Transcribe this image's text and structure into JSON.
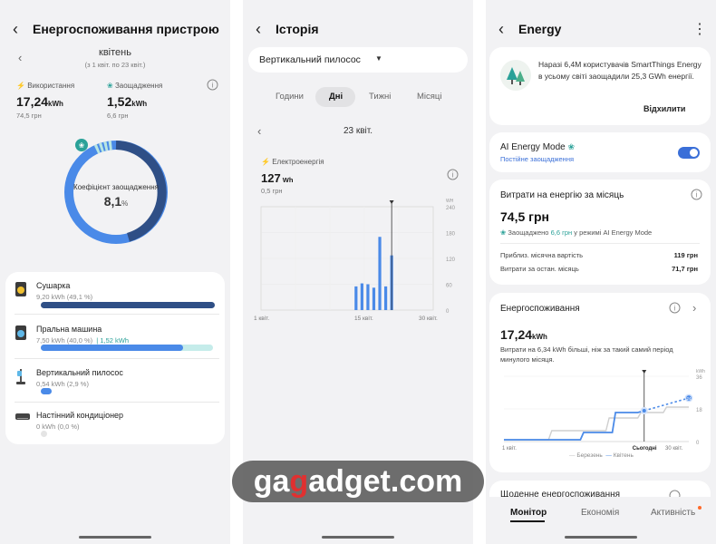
{
  "panel1": {
    "title": "Енергоспоживання пристрою",
    "month": "квітень",
    "range": "(з 1 квіт. по 23 квіт.)",
    "usage_label": "Використання",
    "usage_value": "17,24",
    "usage_unit": "kWh",
    "usage_cost": "74,5 грн",
    "savings_label": "Заощадження",
    "savings_value": "1,52",
    "savings_unit": "kWh",
    "savings_cost": "6,6 грн",
    "ring_label": "Коефіцієнт заощадження",
    "ring_value": "8,1",
    "ring_unit": "%",
    "devices": [
      {
        "name": "Сушарка",
        "value": "9,20 kWh (49,1 %)",
        "share": 1.0,
        "extra": ""
      },
      {
        "name": "Пральна машина",
        "value": "7,50 kWh (40,0 %)",
        "share": 0.82,
        "extra": "1,52 kWh"
      },
      {
        "name": "Вертикальний пилосос",
        "value": "0,54 kWh (2,9 %)",
        "share": 0.06,
        "extra": ""
      },
      {
        "name": "Настінний кондиціонер",
        "value": "0 kWh (0,0 %)",
        "share": 0.0,
        "extra": ""
      }
    ]
  },
  "panel2": {
    "title": "Історія",
    "device_select": "Вертикальний пилосос",
    "tabs": [
      "Години",
      "Дні",
      "Тижні",
      "Місяці"
    ],
    "active_tab": "Дні",
    "date": "23 квіт.",
    "metric_label": "Електроенергія",
    "metric_value": "127",
    "metric_unit": "Wh",
    "metric_cost": "0,5 грн"
  },
  "chart_data": [
    {
      "type": "bar",
      "xlabel": "",
      "ylabel": "",
      "y_unit": "WH",
      "yticks": [
        "240",
        "180",
        "120",
        "60",
        "0"
      ],
      "ylim": [
        0,
        240
      ],
      "x_tick_labels": [
        "1 квіт.",
        "15 квіт.",
        "30 квіт."
      ],
      "days": [
        17,
        18,
        19,
        20,
        21,
        22,
        23
      ],
      "values": [
        55,
        62,
        60,
        52,
        170,
        55,
        127
      ]
    },
    {
      "type": "line",
      "y_unit": "kWh",
      "yticks": [
        "36",
        "18",
        "0"
      ],
      "ylim": [
        0,
        36
      ],
      "x_tick_labels": [
        "1 квіт.",
        "Сьогодні",
        "30 квіт."
      ],
      "end_value_label": "24",
      "series": [
        {
          "name": "Березень",
          "x": [
            1,
            8,
            8.5,
            17,
            17.5,
            22,
            22.5,
            26,
            26.5,
            30
          ],
          "y": [
            1,
            1,
            6,
            6,
            13,
            13,
            16,
            16,
            19,
            19
          ]
        },
        {
          "name": "Квітень",
          "x": [
            1,
            13,
            13.5,
            18,
            18.5,
            22,
            23
          ],
          "y": [
            1,
            1,
            5,
            5,
            16,
            16,
            17
          ]
        },
        {
          "name": "Квітень прогноз",
          "x": [
            23,
            30
          ],
          "y": [
            17,
            24
          ]
        }
      ]
    }
  ],
  "panel3": {
    "title": "Energy",
    "banner_text": "Наразі 6,4М користувачів SmartThings Energy в усьому світі заощадили 25,3 GWh енергії.",
    "dismiss": "Відхилити",
    "ai_mode_label": "AI Energy Mode",
    "ai_mode_sub": "Постійне заощадження",
    "cost_title": "Витрати на енергію за місяць",
    "cost_value": "74,5 грн",
    "cost_saved_prefix": "Заощаджено",
    "cost_saved_amount": "6,6 грн",
    "cost_saved_suffix": "у режимі AI Energy Mode",
    "est_label": "Приблиз. місячна вартість",
    "est_value": "119 грн",
    "last_label": "Витрати за остан. місяць",
    "last_value": "71,7 грн",
    "energy_title": "Енергоспоживання",
    "energy_value": "17,24",
    "energy_unit": "kWh",
    "energy_note": "Витрати на 6,34 kWh більші, ніж за такий самий період минулого місяця.",
    "legend_march": "Березень",
    "legend_april": "Квітень",
    "daily_title": "Щоденне енергоспоживання",
    "bottom_tabs": [
      "Монітор",
      "Економія",
      "Активність"
    ]
  },
  "watermark": {
    "pre": "ga",
    "mid": "g",
    "post": "adget.com"
  },
  "colors": {
    "accent": "#3a6fd8",
    "dark_blue": "#2f4f86",
    "teal": "#2aa198",
    "bar_blue": "#4a8ae8"
  }
}
